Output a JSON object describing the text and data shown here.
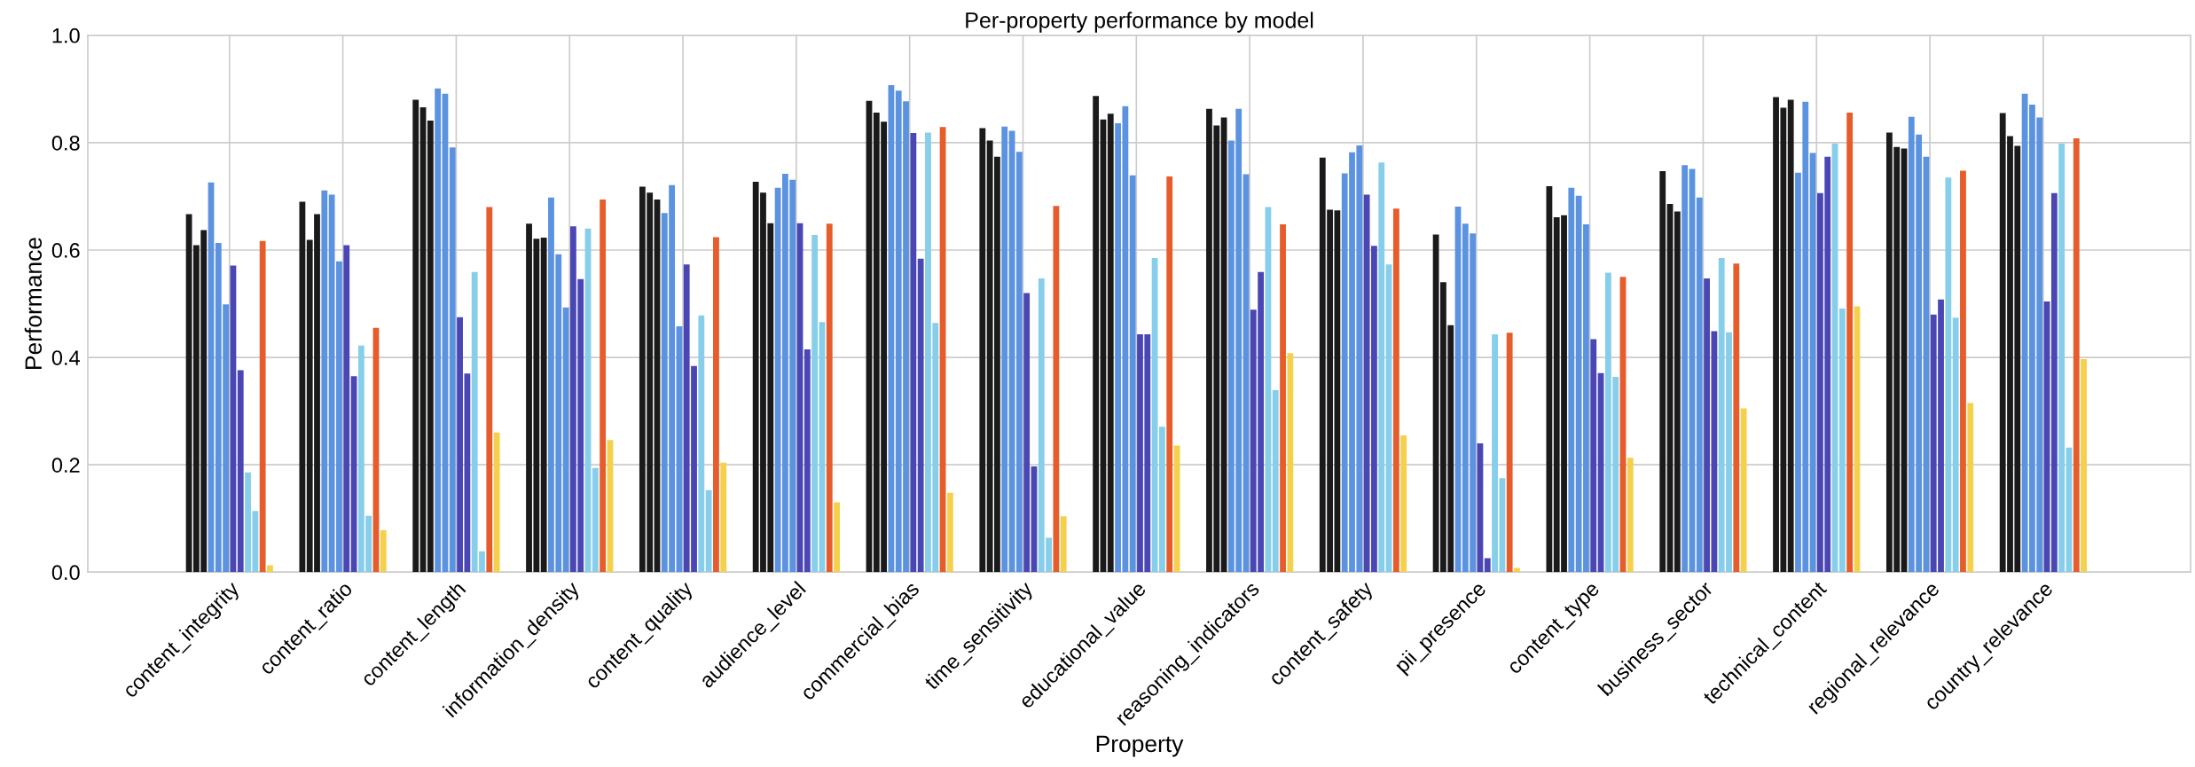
{
  "chart_data": {
    "type": "bar",
    "title": "Per-property performance by model",
    "xlabel": "Property",
    "ylabel": "Performance",
    "categories": [
      "content_integrity",
      "content_ratio",
      "content_length",
      "information_density",
      "content_quality",
      "audience_level",
      "commercial_bias",
      "time_sensitivity",
      "educational_value",
      "reasoning_indicators",
      "content_safety",
      "pii_presence",
      "content_type",
      "business_sector",
      "technical_content",
      "regional_relevance",
      "country_relevance"
    ],
    "ylim": [
      0.0,
      1.0
    ],
    "yticks": [
      {
        "value": 0,
        "label": "0.0"
      },
      0.2,
      0.4,
      0.6,
      0.8,
      {
        "value": 1,
        "label": "1.0"
      }
    ],
    "grid": true,
    "series": [
      {
        "color": "#1a1a1a",
        "values": [
          0.667,
          0.69,
          0.88,
          0.649,
          0.718,
          0.727,
          0.878,
          0.827,
          0.887,
          0.863,
          0.772,
          0.629,
          0.719,
          0.747,
          0.885,
          0.819,
          0.855
        ]
      },
      {
        "color": "#1a1a1a",
        "values": [
          0.609,
          0.619,
          0.866,
          0.621,
          0.707,
          0.707,
          0.856,
          0.804,
          0.843,
          0.832,
          0.675,
          0.54,
          0.661,
          0.686,
          0.865,
          0.792,
          0.812
        ]
      },
      {
        "color": "#1a1a1a",
        "values": [
          0.637,
          0.667,
          0.841,
          0.623,
          0.694,
          0.65,
          0.839,
          0.774,
          0.854,
          0.847,
          0.674,
          0.46,
          0.665,
          0.672,
          0.88,
          0.789,
          0.794
        ]
      },
      {
        "color": "#5b93e0",
        "values": [
          0.726,
          0.711,
          0.901,
          0.698,
          0.669,
          0.716,
          0.907,
          0.83,
          0.836,
          0.804,
          0.743,
          0.681,
          0.716,
          0.758,
          0.744,
          0.848,
          0.891
        ]
      },
      {
        "color": "#5b93e0",
        "values": [
          0.613,
          0.703,
          0.891,
          0.592,
          0.721,
          0.742,
          0.897,
          0.822,
          0.868,
          0.863,
          0.782,
          0.649,
          0.701,
          0.751,
          0.876,
          0.815,
          0.871
        ]
      },
      {
        "color": "#5b93e0",
        "values": [
          0.499,
          0.579,
          0.791,
          0.493,
          0.458,
          0.731,
          0.877,
          0.783,
          0.739,
          0.741,
          0.795,
          0.631,
          0.648,
          0.698,
          0.781,
          0.774,
          0.847
        ]
      },
      {
        "color": "#4a47b5",
        "values": [
          0.571,
          0.609,
          0.475,
          0.644,
          0.573,
          0.65,
          0.818,
          0.52,
          0.443,
          0.489,
          0.703,
          0.24,
          0.434,
          0.547,
          0.706,
          0.48,
          0.504
        ]
      },
      {
        "color": "#4a47b5",
        "values": [
          0.376,
          0.365,
          0.37,
          0.546,
          0.384,
          0.415,
          0.584,
          0.197,
          0.443,
          0.559,
          0.608,
          0.026,
          0.371,
          0.449,
          0.774,
          0.508,
          0.706
        ]
      },
      {
        "color": "#87ceeb",
        "values": [
          0.186,
          0.422,
          0.559,
          0.64,
          0.478,
          0.628,
          0.819,
          0.547,
          0.585,
          0.68,
          0.763,
          0.443,
          0.558,
          0.585,
          0.798,
          0.735,
          0.798
        ]
      },
      {
        "color": "#87ceeb",
        "values": [
          0.114,
          0.105,
          0.039,
          0.194,
          0.153,
          0.466,
          0.464,
          0.064,
          0.271,
          0.339,
          0.573,
          0.175,
          0.364,
          0.447,
          0.491,
          0.474,
          0.232
        ]
      },
      {
        "color": "#e65c2b",
        "values": [
          0.617,
          0.455,
          0.68,
          0.694,
          0.624,
          0.649,
          0.829,
          0.682,
          0.737,
          0.648,
          0.677,
          0.446,
          0.55,
          0.575,
          0.856,
          0.748,
          0.808
        ]
      },
      {
        "color": "#f5d04c",
        "values": [
          0.013,
          0.078,
          0.26,
          0.246,
          0.204,
          0.13,
          0.148,
          0.104,
          0.236,
          0.408,
          0.255,
          0.008,
          0.213,
          0.305,
          0.495,
          0.315,
          0.397
        ]
      }
    ]
  }
}
